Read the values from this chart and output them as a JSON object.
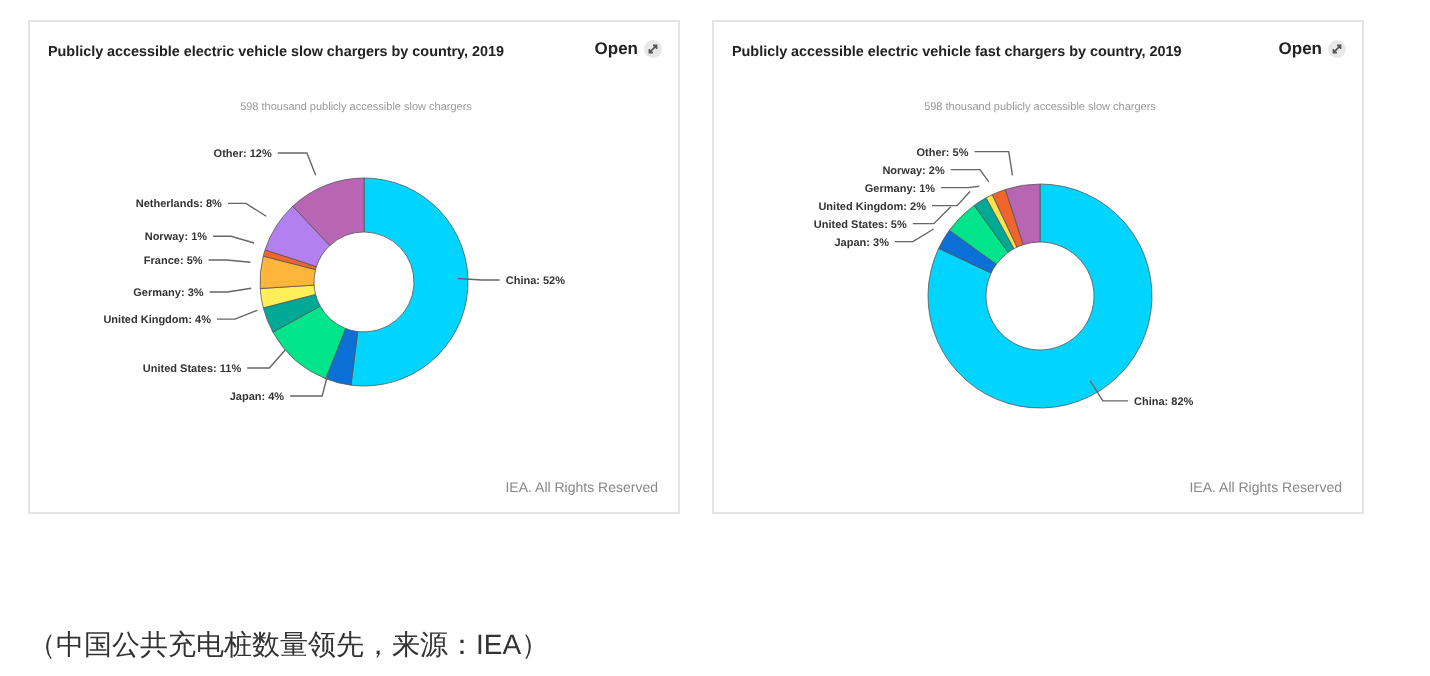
{
  "chart_data": [
    {
      "type": "donut",
      "title": "Publicly accessible electric vehicle slow chargers by country, 2019",
      "subtitle": "598 thousand publicly accessible slow chargers",
      "categories": [
        "China",
        "Japan",
        "United States",
        "United Kingdom",
        "Germany",
        "France",
        "Norway",
        "Netherlands",
        "Other"
      ],
      "values": [
        52,
        4,
        11,
        4,
        3,
        5,
        1,
        8,
        12
      ],
      "value_labels": [
        "52%",
        "4%",
        "11%",
        "4%",
        "3%",
        "5%",
        "1%",
        "8%",
        "12%"
      ],
      "colors": [
        "#00d4ff",
        "#0a6fd6",
        "#00e58c",
        "#00a896",
        "#fff05a",
        "#ffb43c",
        "#f0642d",
        "#b380f0",
        "#b865b3"
      ],
      "annotations": [
        "Open",
        "IEA. All Rights Reserved"
      ]
    },
    {
      "type": "donut",
      "title": "Publicly accessible electric vehicle fast chargers by country, 2019",
      "subtitle": "598 thousand publicly accessible slow chargers",
      "categories": [
        "China",
        "Japan",
        "United States",
        "United Kingdom",
        "Germany",
        "Norway",
        "Other"
      ],
      "values": [
        82,
        3,
        5,
        2,
        1,
        2,
        5
      ],
      "value_labels": [
        "82%",
        "3%",
        "5%",
        "2%",
        "1%",
        "2%",
        "5%"
      ],
      "colors": [
        "#00d4ff",
        "#0a6fd6",
        "#00e58c",
        "#00a896",
        "#ffe14a",
        "#f0642d",
        "#b865b3"
      ],
      "annotations": [
        "Open",
        "IEA. All Rights Reserved",
        "（中国公共充电桩数量领先，来源：IEA）"
      ]
    }
  ]
}
